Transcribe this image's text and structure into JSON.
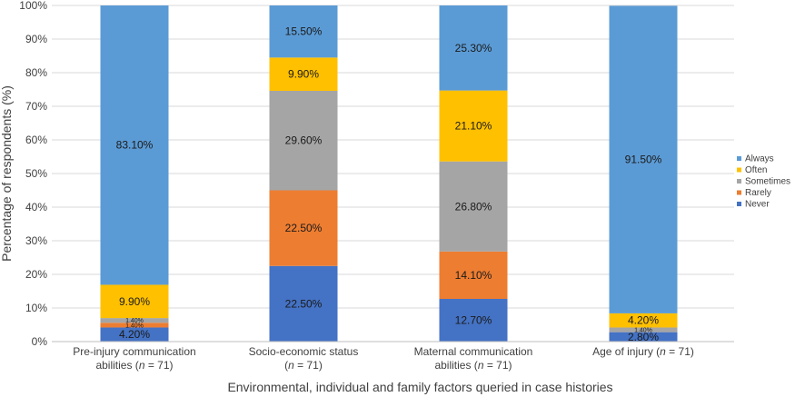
{
  "chart_data": {
    "type": "bar",
    "stacked": true,
    "categories": [
      [
        "Pre-injury communication",
        "abilities (n = 71)"
      ],
      [
        "Socio-economic status",
        "(n = 71)"
      ],
      [
        "Maternal communication",
        "abilities (n = 71)"
      ],
      [
        "Age of injury (n = 71)"
      ]
    ],
    "series": [
      {
        "name": "Never",
        "color": "#4472C4",
        "values": [
          4.2,
          22.5,
          12.7,
          2.8
        ]
      },
      {
        "name": "Rarely",
        "color": "#ED7D31",
        "values": [
          1.4,
          22.5,
          14.1,
          0.0
        ]
      },
      {
        "name": "Sometimes",
        "color": "#A5A5A5",
        "values": [
          1.4,
          29.6,
          26.8,
          1.4
        ]
      },
      {
        "name": "Often",
        "color": "#FFC000",
        "values": [
          9.9,
          9.9,
          21.1,
          4.2
        ]
      },
      {
        "name": "Always",
        "color": "#5B9BD5",
        "values": [
          83.1,
          15.5,
          25.3,
          91.5
        ]
      }
    ],
    "data_labels": [
      [
        "4.20%",
        "1.40%",
        "1.40%",
        "9.90%",
        "83.10%"
      ],
      [
        "22.50%",
        "22.50%",
        "29.60%",
        "9.90%",
        "15.50%"
      ],
      [
        "12.70%",
        "14.10%",
        "26.80%",
        "21.10%",
        "25.30%"
      ],
      [
        "2.80%",
        "",
        "1.40%",
        "4.20%",
        "91.50%"
      ]
    ],
    "y_ticks": [
      "0%",
      "10%",
      "20%",
      "30%",
      "40%",
      "50%",
      "60%",
      "70%",
      "80%",
      "90%",
      "100%"
    ],
    "ylim": [
      0,
      100
    ],
    "xlabel": "Environmental, individual and family factors queried in case histories",
    "ylabel": "Percentage of respondents (%)",
    "legend_order": [
      "Always",
      "Often",
      "Sometimes",
      "Rarely",
      "Never"
    ],
    "legend_position": "right",
    "grid": true
  }
}
